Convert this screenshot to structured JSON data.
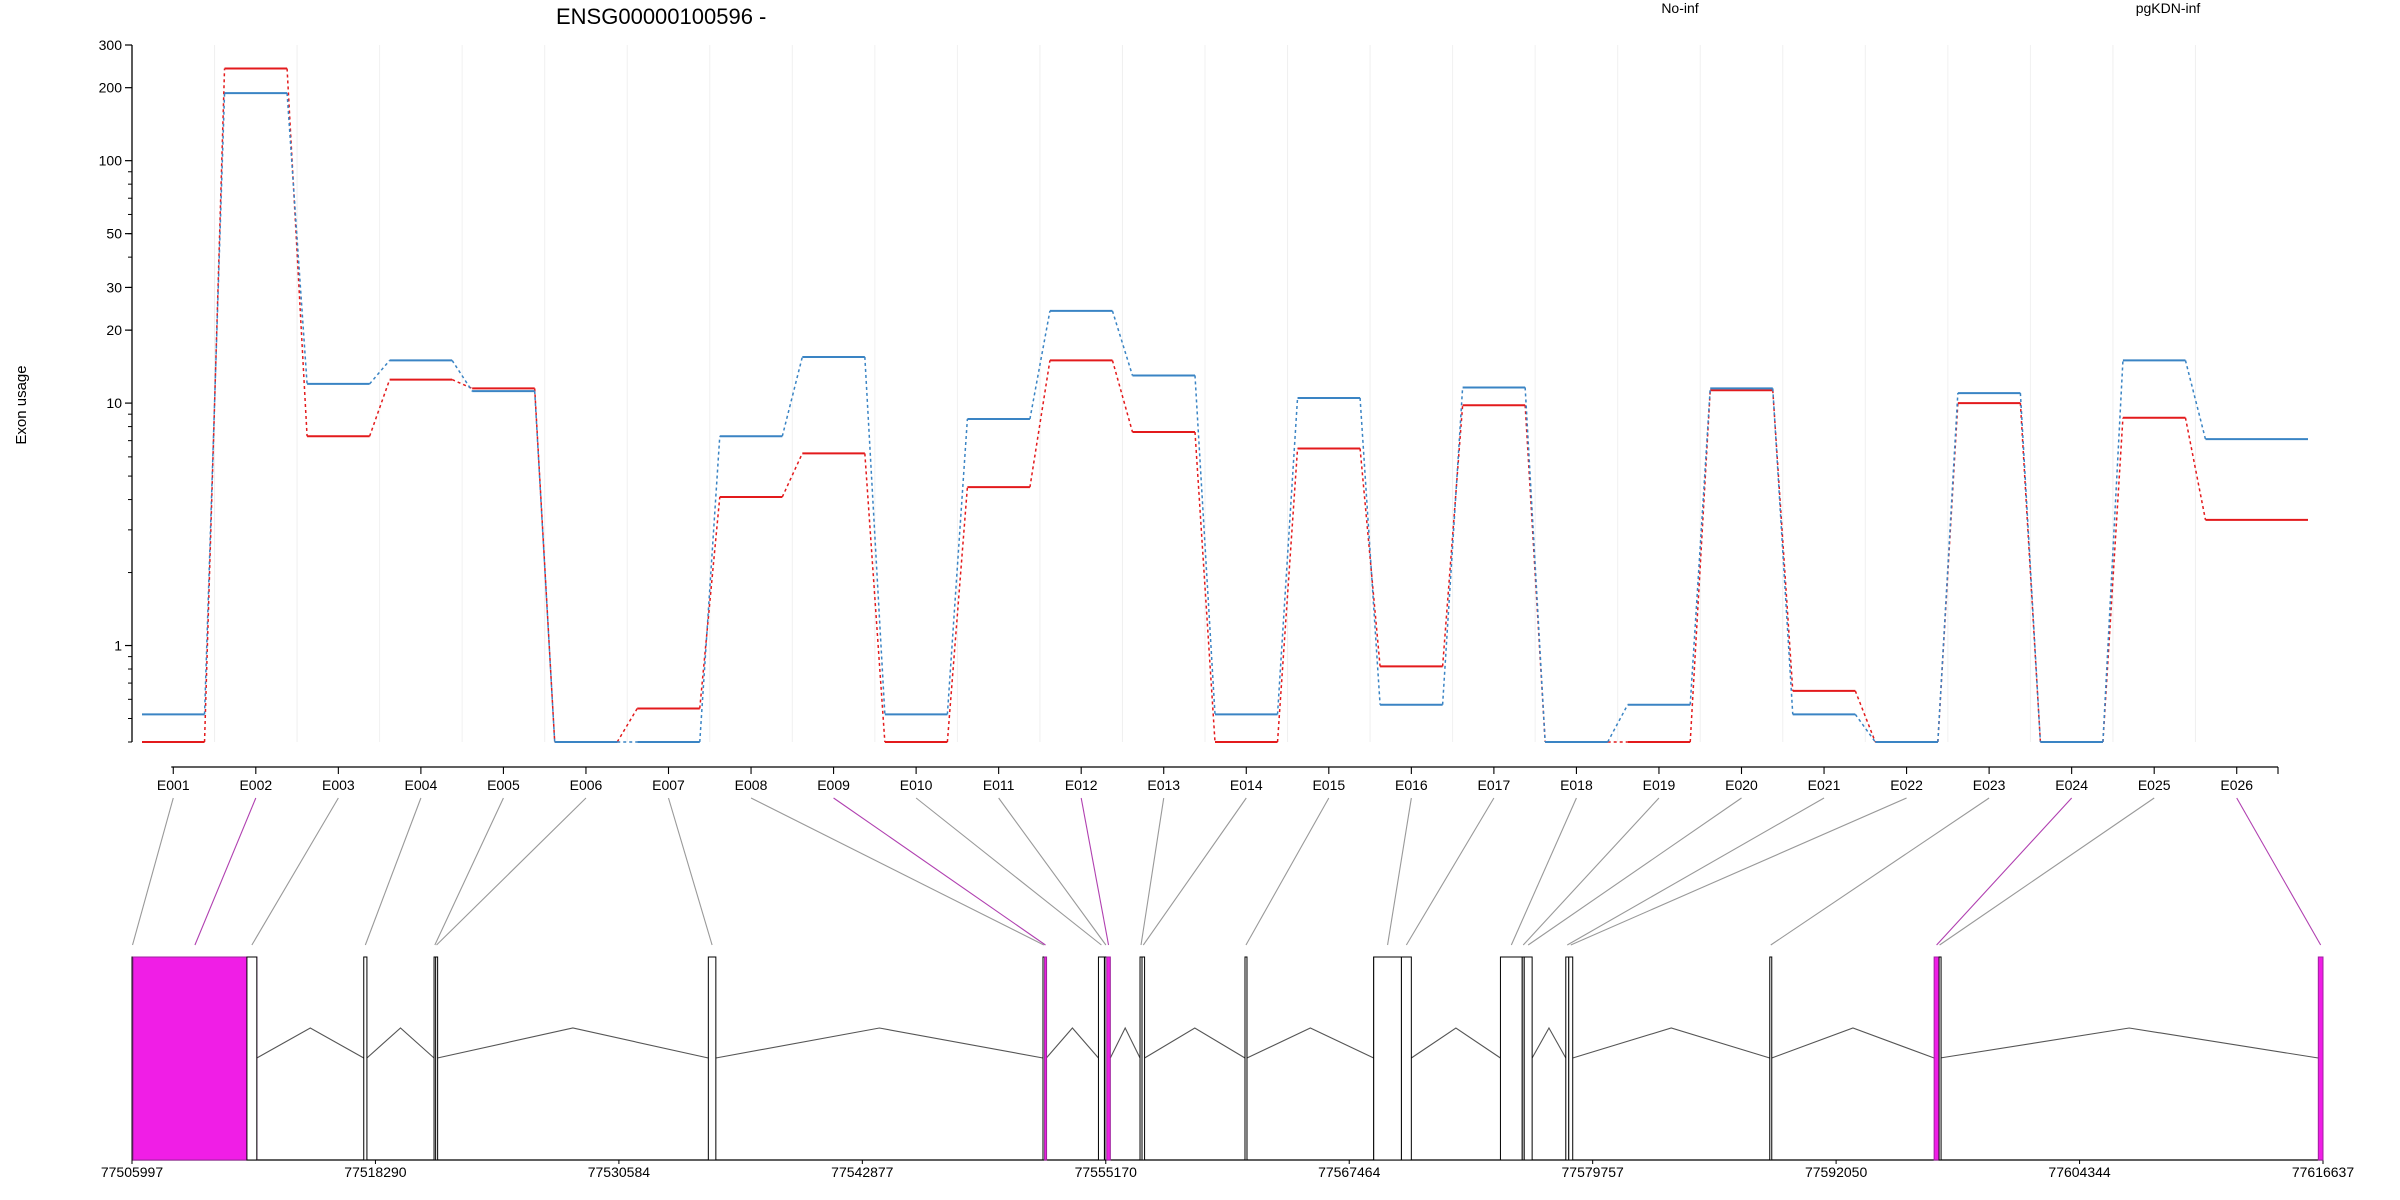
{
  "chart_data": {
    "type": "line",
    "title": "ENSG00000100596 -",
    "ylabel": "Exon usage",
    "xlabel": "",
    "y_scale": "log",
    "ylim": [
      0.4,
      300
    ],
    "y_ticks": [
      "300",
      "200",
      "100",
      "50",
      "30",
      "20",
      "10",
      "1"
    ],
    "y_tick_values": [
      300,
      200,
      100,
      50,
      30,
      20,
      10,
      1
    ],
    "categories": [
      "E001",
      "E002",
      "E003",
      "E004",
      "E005",
      "E006",
      "E007",
      "E008",
      "E009",
      "E010",
      "E011",
      "E012",
      "E013",
      "E014",
      "E015",
      "E016",
      "E017",
      "E018",
      "E019",
      "E020",
      "E021",
      "E022",
      "E023",
      "E024",
      "E025",
      "E026"
    ],
    "legend_placement": "top",
    "series": [
      {
        "name": "No-inf",
        "color": "#e31a1c",
        "values": [
          0.4,
          240,
          7.3,
          12.5,
          11.5,
          0.4,
          0.55,
          4.1,
          6.2,
          0.4,
          4.5,
          15,
          7.6,
          0.4,
          6.5,
          0.82,
          9.8,
          0.4,
          0.4,
          11.3,
          0.65,
          0.4,
          10,
          0.4,
          8.7,
          3.3
        ]
      },
      {
        "name": "pgKDN-inf",
        "color": "#3a84c4",
        "values": [
          0.52,
          190,
          12,
          15,
          11.2,
          0.4,
          0.4,
          7.3,
          15.5,
          0.52,
          8.6,
          24,
          13,
          0.52,
          10.5,
          0.57,
          11.6,
          0.4,
          0.57,
          11.5,
          0.52,
          0.4,
          11,
          0.4,
          15,
          7.1
        ]
      }
    ],
    "grid": "vertical",
    "gene_model": {
      "coordinates": [
        "77505997",
        "77518290",
        "77530584",
        "77542877",
        "77555170",
        "77567464",
        "77579757",
        "77592050",
        "77604344",
        "77616637"
      ],
      "highlight_color": "#f01ee6",
      "exons": [
        {
          "id": "E001",
          "start": 77505997,
          "end": 77506050,
          "highlighted": false
        },
        {
          "id": "E002",
          "start": 77506050,
          "end": 77512300,
          "highlighted": true
        },
        {
          "id": "E003",
          "start": 77511800,
          "end": 77512300,
          "highlighted": false
        },
        {
          "id": "E004",
          "start": 77517700,
          "end": 77517860,
          "highlighted": false
        },
        {
          "id": "E005",
          "start": 77521250,
          "end": 77521330,
          "highlighted": false
        },
        {
          "id": "E006",
          "start": 77521330,
          "end": 77521420,
          "highlighted": false
        },
        {
          "id": "E007",
          "start": 77535100,
          "end": 77535480,
          "highlighted": false
        },
        {
          "id": "E008",
          "start": 77552000,
          "end": 77552080,
          "highlighted": false
        },
        {
          "id": "E009",
          "start": 77552080,
          "end": 77552170,
          "highlighted": true
        },
        {
          "id": "E010",
          "start": 77554800,
          "end": 77555100,
          "highlighted": false
        },
        {
          "id": "E011",
          "start": 77555130,
          "end": 77555220,
          "highlighted": false
        },
        {
          "id": "E012",
          "start": 77555220,
          "end": 77555400,
          "highlighted": true
        },
        {
          "id": "E013",
          "start": 77556900,
          "end": 77557000,
          "highlighted": false
        },
        {
          "id": "E014",
          "start": 77557000,
          "end": 77557130,
          "highlighted": false
        },
        {
          "id": "E015",
          "start": 77562200,
          "end": 77562300,
          "highlighted": false
        },
        {
          "id": "E016",
          "start": 77568700,
          "end": 77570100,
          "highlighted": false
        },
        {
          "id": "E017",
          "start": 77570100,
          "end": 77570600,
          "highlighted": false
        },
        {
          "id": "E018",
          "start": 77575100,
          "end": 77576200,
          "highlighted": false
        },
        {
          "id": "E019",
          "start": 77576200,
          "end": 77576300,
          "highlighted": false
        },
        {
          "id": "E020",
          "start": 77576300,
          "end": 77576700,
          "highlighted": false
        },
        {
          "id": "E021",
          "start": 77578400,
          "end": 77578550,
          "highlighted": false
        },
        {
          "id": "E022",
          "start": 77578550,
          "end": 77578750,
          "highlighted": false
        },
        {
          "id": "E023",
          "start": 77588700,
          "end": 77588800,
          "highlighted": false
        },
        {
          "id": "E024",
          "start": 77597000,
          "end": 77597250,
          "highlighted": true
        },
        {
          "id": "E025",
          "start": 77597250,
          "end": 77597300,
          "highlighted": false
        },
        {
          "id": "E026",
          "start": 77616400,
          "end": 77616637,
          "highlighted": true
        }
      ],
      "gray_exon": {
        "start": 77568700,
        "end": 77570100,
        "color": "#c8c8c8"
      }
    }
  }
}
